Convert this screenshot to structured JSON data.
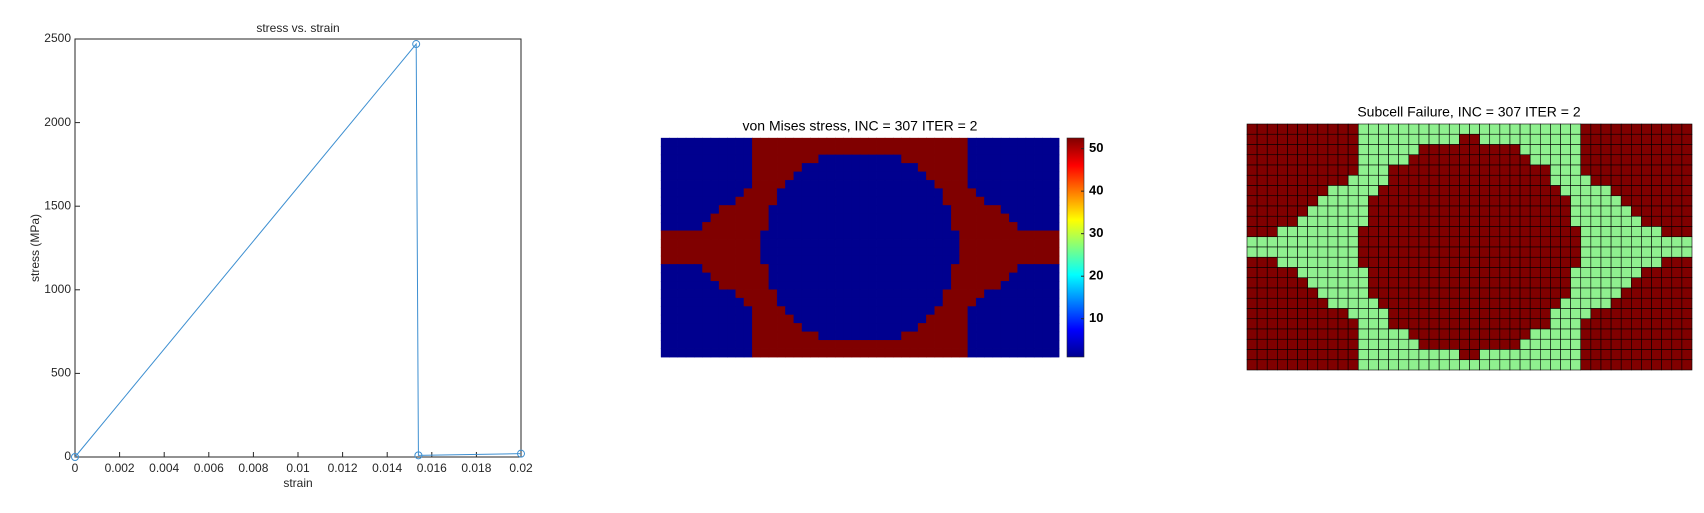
{
  "chart_data": [
    {
      "type": "line",
      "title": "stress vs. strain",
      "xlabel": "strain",
      "ylabel": "stress (MPa)",
      "x": [
        0,
        0.0153,
        0.0154,
        0.02
      ],
      "series": [
        {
          "color": "#3d8fd1",
          "values": [
            0,
            2470,
            10,
            20
          ]
        }
      ],
      "xlim": [
        0,
        0.02
      ],
      "xticks": [
        0,
        0.002,
        0.004,
        0.006,
        0.008,
        0.01,
        0.012,
        0.014,
        0.016,
        0.018,
        0.02
      ],
      "ylim": [
        0,
        2500
      ],
      "yticks": [
        0,
        500,
        1000,
        1500,
        2000,
        2500
      ]
    },
    {
      "type": "heatmap",
      "title": "von Mises stress, INC = 307 ITER = 2",
      "colormap": "jet",
      "clim": [
        1,
        52.5
      ],
      "cticks": [
        10,
        20,
        30,
        40,
        50
      ],
      "colors": [
        "#00008f",
        "#800000"
      ]
    },
    {
      "type": "heatmap",
      "title": "Subcell Failure, INC = 307 ITER = 2",
      "colors": [
        "#800000",
        "#8ff08f"
      ]
    }
  ]
}
